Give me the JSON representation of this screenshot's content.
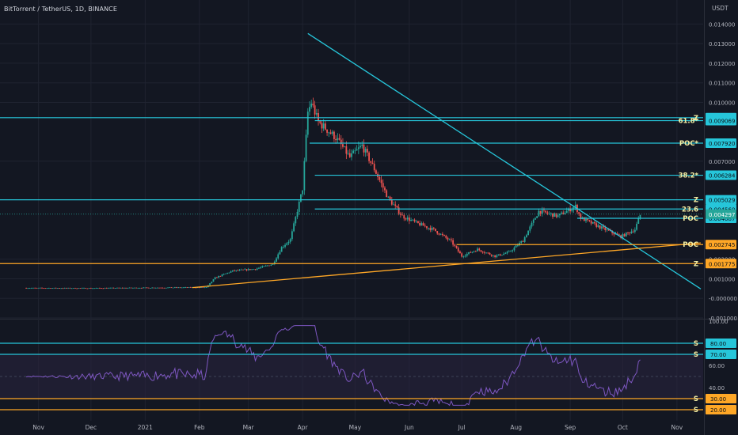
{
  "header": {
    "symbol_title": "BitTorrent / TetherUS, 1D, BINANCE",
    "unit": "USDT"
  },
  "colors": {
    "background": "#131722",
    "grid": "#1f2330",
    "cyan": "#26c6da",
    "orange": "#ffa726",
    "up": "#26a69a",
    "down": "#ef5350",
    "rsi": "#7e57c2",
    "rsi_fill": "#2a2540",
    "label_text": "#f6f0a4",
    "axis_text": "#b2b5be"
  },
  "price_axis": {
    "ticks": [
      "0.014000",
      "0.013000",
      "0.012000",
      "0.011000",
      "0.010000",
      "0.007000",
      "0.002000",
      "0.001000",
      "-0.000000",
      "-0.001000"
    ],
    "range": [
      -0.001,
      0.0145
    ]
  },
  "time_axis": {
    "labels": [
      "Nov",
      "Dec",
      "2021",
      "Feb",
      "Mar",
      "Apr",
      "May",
      "Jun",
      "Jul",
      "Aug",
      "Sep",
      "Oct",
      "Nov"
    ]
  },
  "chart_data": [
    {
      "type": "line",
      "title": "",
      "description_note": "",
      "x_labels": [
        "Nov",
        "Dec",
        "2021",
        "Feb",
        "Mar",
        "Apr",
        "May",
        "Jun",
        "Jul",
        "Aug",
        "Sep",
        "Oct"
      ],
      "price_path": [
        [
          "2020-10-25",
          0.00053
        ],
        [
          "2020-12-01",
          0.00052
        ],
        [
          "2021-01-15",
          0.00055
        ],
        [
          "2021-02-05",
          0.00056
        ],
        [
          "2021-02-10",
          0.00105
        ],
        [
          "2021-02-20",
          0.0014
        ],
        [
          "2021-03-05",
          0.0015
        ],
        [
          "2021-03-15",
          0.00175
        ],
        [
          "2021-03-20",
          0.0026
        ],
        [
          "2021-03-25",
          0.003
        ],
        [
          "2021-04-01",
          0.0056
        ],
        [
          "2021-04-04",
          0.0095
        ],
        [
          "2021-04-06",
          0.01
        ],
        [
          "2021-04-10",
          0.009
        ],
        [
          "2021-04-20",
          0.0082
        ],
        [
          "2021-04-28",
          0.0072
        ],
        [
          "2021-05-05",
          0.0078
        ],
        [
          "2021-05-12",
          0.0066
        ],
        [
          "2021-05-20",
          0.0051
        ],
        [
          "2021-05-28",
          0.0042
        ],
        [
          "2021-06-05",
          0.00385
        ],
        [
          "2021-06-15",
          0.0035
        ],
        [
          "2021-06-25",
          0.0029
        ],
        [
          "2021-07-01",
          0.00215
        ],
        [
          "2021-07-10",
          0.0025
        ],
        [
          "2021-07-20",
          0.00215
        ],
        [
          "2021-07-28",
          0.00235
        ],
        [
          "2021-08-05",
          0.00295
        ],
        [
          "2021-08-14",
          0.00445
        ],
        [
          "2021-08-25",
          0.0042
        ],
        [
          "2021-09-04",
          0.0047
        ],
        [
          "2021-09-07",
          0.0041
        ],
        [
          "2021-09-20",
          0.00355
        ],
        [
          "2021-09-30",
          0.00315
        ],
        [
          "2021-10-08",
          0.00352
        ],
        [
          "2021-10-11",
          0.00425
        ]
      ],
      "ylim": [
        -0.001,
        0.0145
      ],
      "horizontal_levels": [
        {
          "label": "Z",
          "value": 0.00922,
          "color": "#26c6da",
          "badge": "0.009220"
        },
        {
          "label": "61.8*",
          "value": 0.009069,
          "color": "#26c6da",
          "badge": "0.009069"
        },
        {
          "label": "POC*",
          "value": 0.00792,
          "color": "#26c6da",
          "badge": "0.007920"
        },
        {
          "label": "38.2*",
          "value": 0.006284,
          "color": "#26c6da",
          "badge": "0.006284"
        },
        {
          "label": "Z",
          "value": 0.005029,
          "color": "#26c6da",
          "badge": "0.005029"
        },
        {
          "label": "23.6",
          "value": 0.00456,
          "color": "#26c6da",
          "badge": "0.004560"
        },
        {
          "label": "POC",
          "value": 0.004087,
          "color": "#26c6da",
          "badge": "0.004087"
        },
        {
          "label": "POC",
          "value": 0.002745,
          "color": "#ffa726",
          "badge": "0.002745"
        },
        {
          "label": "Z",
          "value": 0.001775,
          "color": "#ffa726",
          "badge": "0.001775"
        }
      ],
      "current_price": {
        "value": 0.004297,
        "badge": "0.004297"
      }
    },
    {
      "type": "line",
      "title": "",
      "ylim": [
        10,
        100
      ],
      "y_ticks": [
        "100.00",
        "60.00",
        "40.00"
      ],
      "rsi_levels": [
        {
          "label": "S",
          "value": 80,
          "color": "#26c6da",
          "badge": "80.00"
        },
        {
          "label": "S",
          "value": 70,
          "color": "#26c6da",
          "badge": "70.00"
        },
        {
          "label": "S",
          "value": 30,
          "color": "#ffa726",
          "badge": "30.00"
        },
        {
          "label": "S",
          "value": 20,
          "color": "#ffa726",
          "badge": "20.00"
        }
      ]
    }
  ]
}
